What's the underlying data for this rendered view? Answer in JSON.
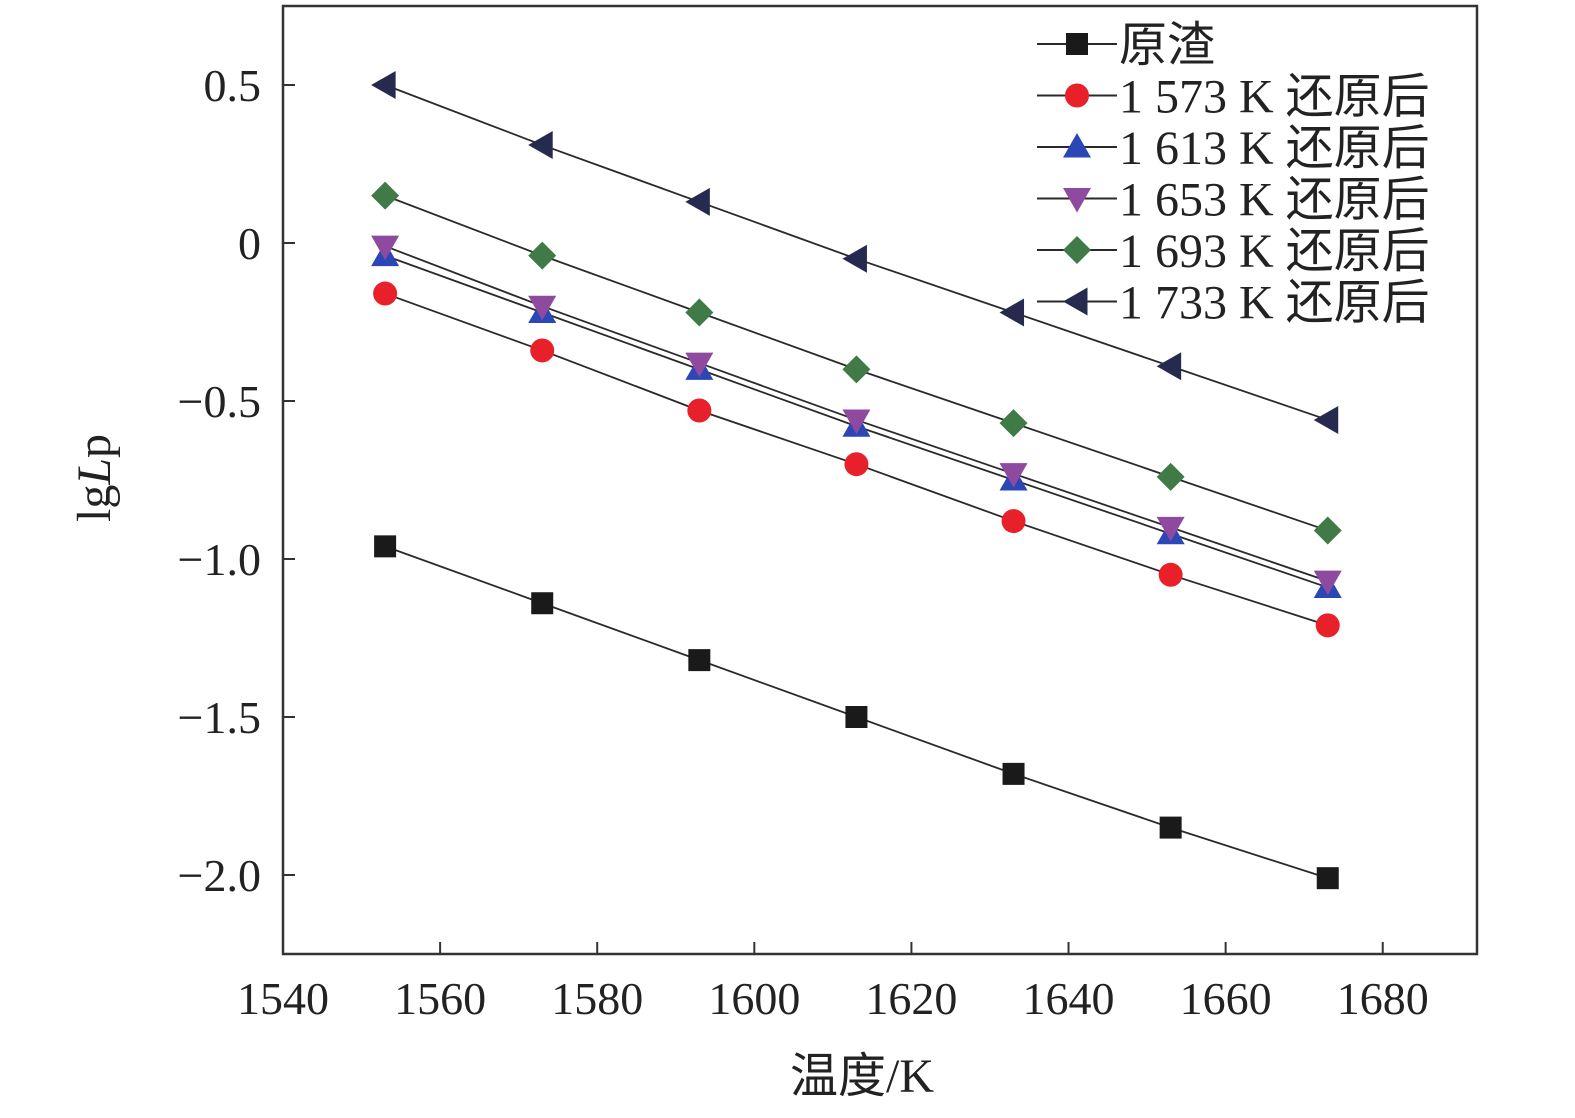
{
  "chart_data": {
    "type": "line",
    "xlabel": "温度/K",
    "ylabel_prefix": "lg",
    "ylabel_italic": "L",
    "ylabel_suffix": "p",
    "xlim": [
      1540,
      1692
    ],
    "ylim": [
      -2.25,
      0.75
    ],
    "x_ticks": [
      1540,
      1560,
      1580,
      1600,
      1620,
      1640,
      1660,
      1680
    ],
    "x_tick_labels": [
      "1540",
      "1560",
      "1580",
      "1600",
      "1620",
      "1640",
      "1660",
      "1680"
    ],
    "y_ticks": [
      0.5,
      0,
      -0.5,
      -1.0,
      -1.5,
      -2.0
    ],
    "y_tick_labels": [
      "0.5",
      "0",
      "−0.5",
      "−1.0",
      "−1.5",
      "−2.0"
    ],
    "x": [
      1553,
      1573,
      1593,
      1613,
      1633,
      1653,
      1673
    ],
    "legend_position": "top-right",
    "series": [
      {
        "name": "原渣",
        "marker": "square",
        "color": "#1a1a1a",
        "values": [
          -0.96,
          -1.14,
          -1.32,
          -1.5,
          -1.68,
          -1.85,
          -2.01
        ]
      },
      {
        "name": "1 573 K 还原后",
        "marker": "circle",
        "color": "#e8202a",
        "values": [
          -0.16,
          -0.34,
          -0.53,
          -0.7,
          -0.88,
          -1.05,
          -1.21
        ]
      },
      {
        "name": "1 613 K 还原后",
        "marker": "triangle-up",
        "color": "#2b47b5",
        "values": [
          -0.04,
          -0.22,
          -0.4,
          -0.58,
          -0.75,
          -0.92,
          -1.09
        ]
      },
      {
        "name": "1 653 K 还原后",
        "marker": "triangle-down",
        "color": "#8e4a9e",
        "values": [
          -0.01,
          -0.2,
          -0.38,
          -0.56,
          -0.73,
          -0.9,
          -1.07
        ]
      },
      {
        "name": "1 693 K 还原后",
        "marker": "diamond",
        "color": "#3f7a47",
        "values": [
          0.15,
          -0.04,
          -0.22,
          -0.4,
          -0.57,
          -0.74,
          -0.91
        ]
      },
      {
        "name": "1 733 K 还原后",
        "marker": "triangle-left",
        "color": "#262a4f",
        "values": [
          0.5,
          0.31,
          0.13,
          -0.05,
          -0.22,
          -0.39,
          -0.56
        ]
      }
    ]
  }
}
